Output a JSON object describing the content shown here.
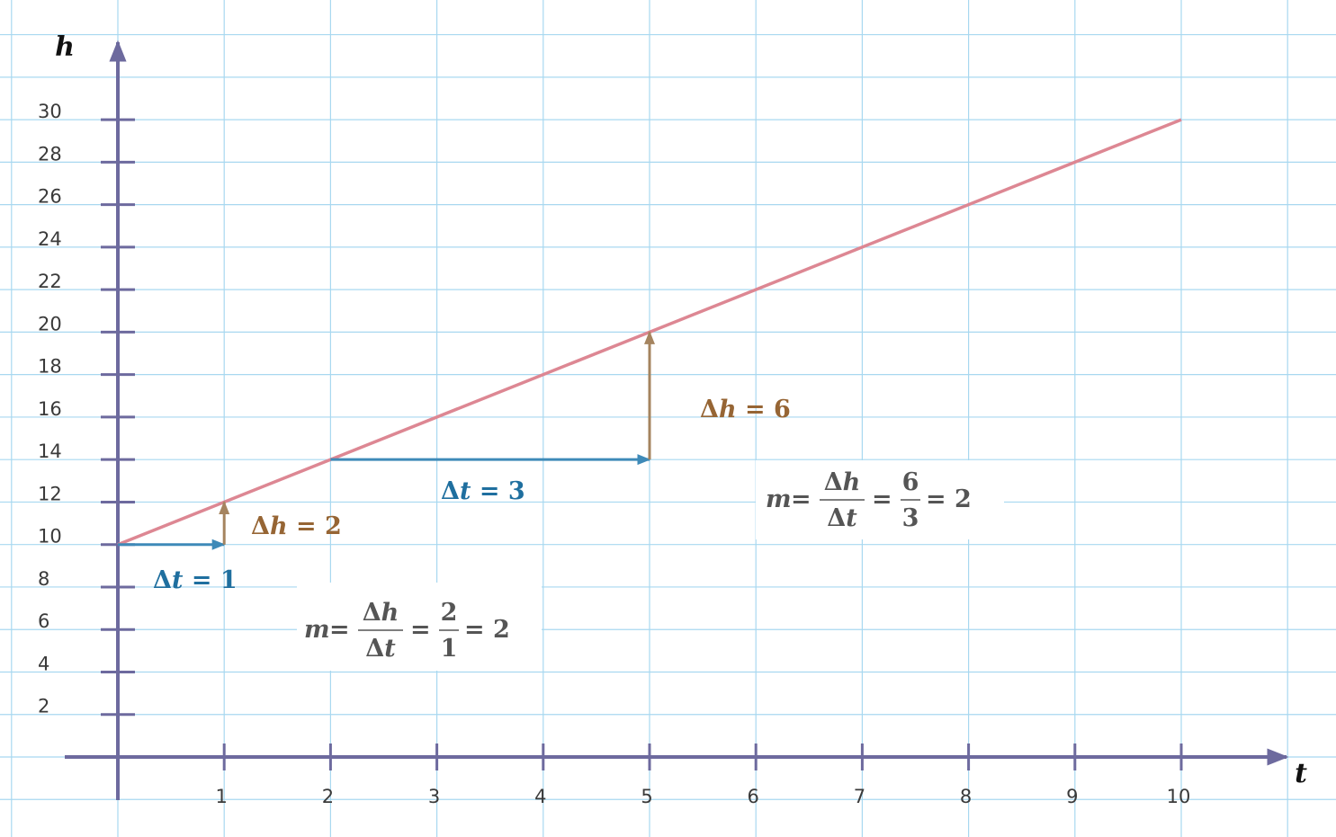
{
  "chart_data": {
    "type": "line",
    "title": "",
    "xlabel": "t",
    "ylabel": "h",
    "xlim": [
      -1,
      11
    ],
    "ylim": [
      -1,
      34
    ],
    "x_ticks": [
      "1",
      "2",
      "3",
      "4",
      "5",
      "6",
      "7",
      "8",
      "9",
      "10"
    ],
    "y_ticks": [
      "2",
      "4",
      "6",
      "8",
      "10",
      "12",
      "14",
      "16",
      "18",
      "20",
      "22",
      "24",
      "26",
      "28",
      "30"
    ],
    "grid": true,
    "series": [
      {
        "x": [
          0,
          10
        ],
        "y": [
          10,
          30
        ]
      }
    ],
    "annotations": [
      {
        "kind": "delta-t",
        "label": "Δt = 1",
        "from": [
          0,
          10
        ],
        "to": [
          1,
          10
        ]
      },
      {
        "kind": "delta-h",
        "label": "Δh = 2",
        "from": [
          1,
          10
        ],
        "to": [
          1,
          12
        ]
      },
      {
        "kind": "delta-t",
        "label": "Δt = 3",
        "from": [
          2,
          14
        ],
        "to": [
          5,
          14
        ]
      },
      {
        "kind": "delta-h",
        "label": "Δh = 6",
        "from": [
          5,
          14
        ],
        "to": [
          5,
          20
        ]
      }
    ],
    "formulas": [
      {
        "m": "m",
        "num": "Δh",
        "den": "Δt",
        "num2": "2",
        "den2": "1",
        "result": "2"
      },
      {
        "m": "m",
        "num": "Δh",
        "den": "Δt",
        "num2": "6",
        "den2": "3",
        "result": "2"
      }
    ],
    "colors": {
      "line": "#dd8793",
      "axis": "#6d6a9e",
      "grid": "#a8d8f0",
      "delta_t": "#3e8ab8",
      "delta_h": "#a5845f",
      "delta_t_text": "#1f6f9f",
      "delta_h_text": "#966534",
      "formula_text": "#555555"
    }
  }
}
